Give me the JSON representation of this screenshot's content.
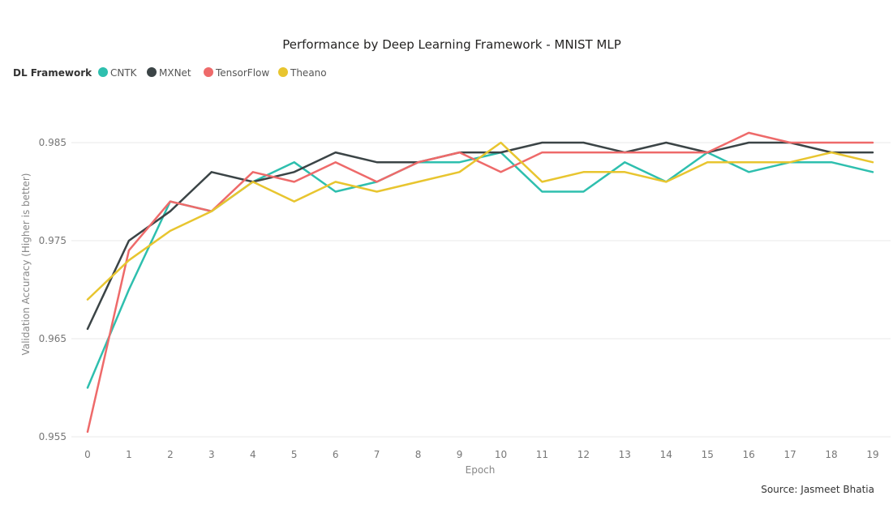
{
  "chart_data": {
    "type": "line",
    "title": "Performance by Deep Learning Framework - MNIST MLP",
    "legend_title": "DL Framework",
    "legend_position": "top-left",
    "xlabel": "Epoch",
    "ylabel": "Validation Accuracy (Higher is better)",
    "x": [
      0,
      1,
      2,
      3,
      4,
      5,
      6,
      7,
      8,
      9,
      10,
      11,
      12,
      13,
      14,
      15,
      16,
      17,
      18,
      19
    ],
    "x_ticks": [
      "0",
      "1",
      "2",
      "3",
      "4",
      "5",
      "6",
      "7",
      "8",
      "9",
      "10",
      "11",
      "12",
      "13",
      "14",
      "15",
      "16",
      "17",
      "18",
      "19"
    ],
    "y_ticks": [
      "0.955",
      "0.965",
      "0.975",
      "0.985"
    ],
    "y_tick_values": [
      0.955,
      0.965,
      0.975,
      0.985
    ],
    "ylim": [
      0.955,
      0.988
    ],
    "grid": "horizontal",
    "series": [
      {
        "name": "CNTK",
        "color": "#2EBFAE",
        "values": [
          0.96,
          0.97,
          0.979,
          0.978,
          0.981,
          0.983,
          0.98,
          0.981,
          0.983,
          0.983,
          0.984,
          0.98,
          0.98,
          0.983,
          0.981,
          0.984,
          0.982,
          0.983,
          0.983,
          0.982
        ]
      },
      {
        "name": "MXNet",
        "color": "#3B4446",
        "values": [
          0.966,
          0.975,
          0.978,
          0.982,
          0.981,
          0.982,
          0.984,
          0.983,
          0.983,
          0.984,
          0.984,
          0.985,
          0.985,
          0.984,
          0.985,
          0.984,
          0.985,
          0.985,
          0.984,
          0.984
        ]
      },
      {
        "name": "TensorFlow",
        "color": "#EE6A6A",
        "values": [
          0.9555,
          0.974,
          0.979,
          0.978,
          0.982,
          0.981,
          0.983,
          0.981,
          0.983,
          0.984,
          0.982,
          0.984,
          0.984,
          0.984,
          0.984,
          0.984,
          0.986,
          0.985,
          0.985,
          0.985
        ]
      },
      {
        "name": "Theano",
        "color": "#E8C52F",
        "values": [
          0.969,
          0.973,
          0.976,
          0.978,
          0.981,
          0.979,
          0.981,
          0.98,
          0.981,
          0.982,
          0.985,
          0.981,
          0.982,
          0.982,
          0.981,
          0.983,
          0.983,
          0.983,
          0.984,
          0.983
        ]
      }
    ],
    "source": "Source: Jasmeet Bhatia"
  }
}
